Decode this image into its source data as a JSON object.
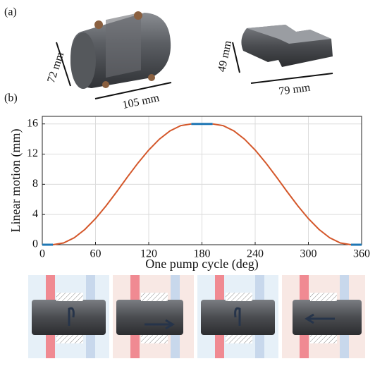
{
  "panel_a": {
    "label": "(a)",
    "dims": [
      "72 mm",
      "105 mm",
      "49 mm",
      "79 mm"
    ]
  },
  "panel_b": {
    "label": "(b)"
  },
  "chart_data": {
    "type": "line",
    "x_label": "One pump cycle (deg)",
    "y_label": "Linear motion (mm)",
    "x": [
      0,
      12,
      24,
      36,
      48,
      60,
      72,
      84,
      96,
      108,
      120,
      132,
      144,
      156,
      168,
      180,
      192,
      204,
      216,
      228,
      240,
      252,
      264,
      276,
      288,
      300,
      312,
      324,
      336,
      348,
      360
    ],
    "series": [
      {
        "color": "#d4572a",
        "values": [
          null,
          0,
          0.23,
          0.92,
          2.02,
          3.46,
          5.16,
          7.03,
          8.97,
          10.84,
          12.54,
          13.98,
          15.08,
          15.77,
          16,
          null,
          16,
          15.77,
          15.08,
          13.98,
          12.54,
          10.84,
          8.97,
          7.03,
          5.16,
          3.46,
          2.02,
          0.92,
          0.23,
          0,
          null
        ]
      },
      {
        "color": "#1f77b4",
        "values": [
          0,
          0,
          null,
          null,
          null,
          null,
          null,
          null,
          null,
          null,
          null,
          null,
          null,
          null,
          16,
          16,
          16,
          null,
          null,
          null,
          null,
          null,
          null,
          null,
          null,
          null,
          null,
          null,
          null,
          0,
          0
        ]
      }
    ],
    "xlim": [
      0,
      360
    ],
    "xticks": [
      0,
      60,
      120,
      180,
      240,
      300,
      360
    ],
    "ylim": [
      0,
      17
    ],
    "yticks": [
      0,
      4,
      8,
      12,
      16
    ],
    "grid": true
  }
}
